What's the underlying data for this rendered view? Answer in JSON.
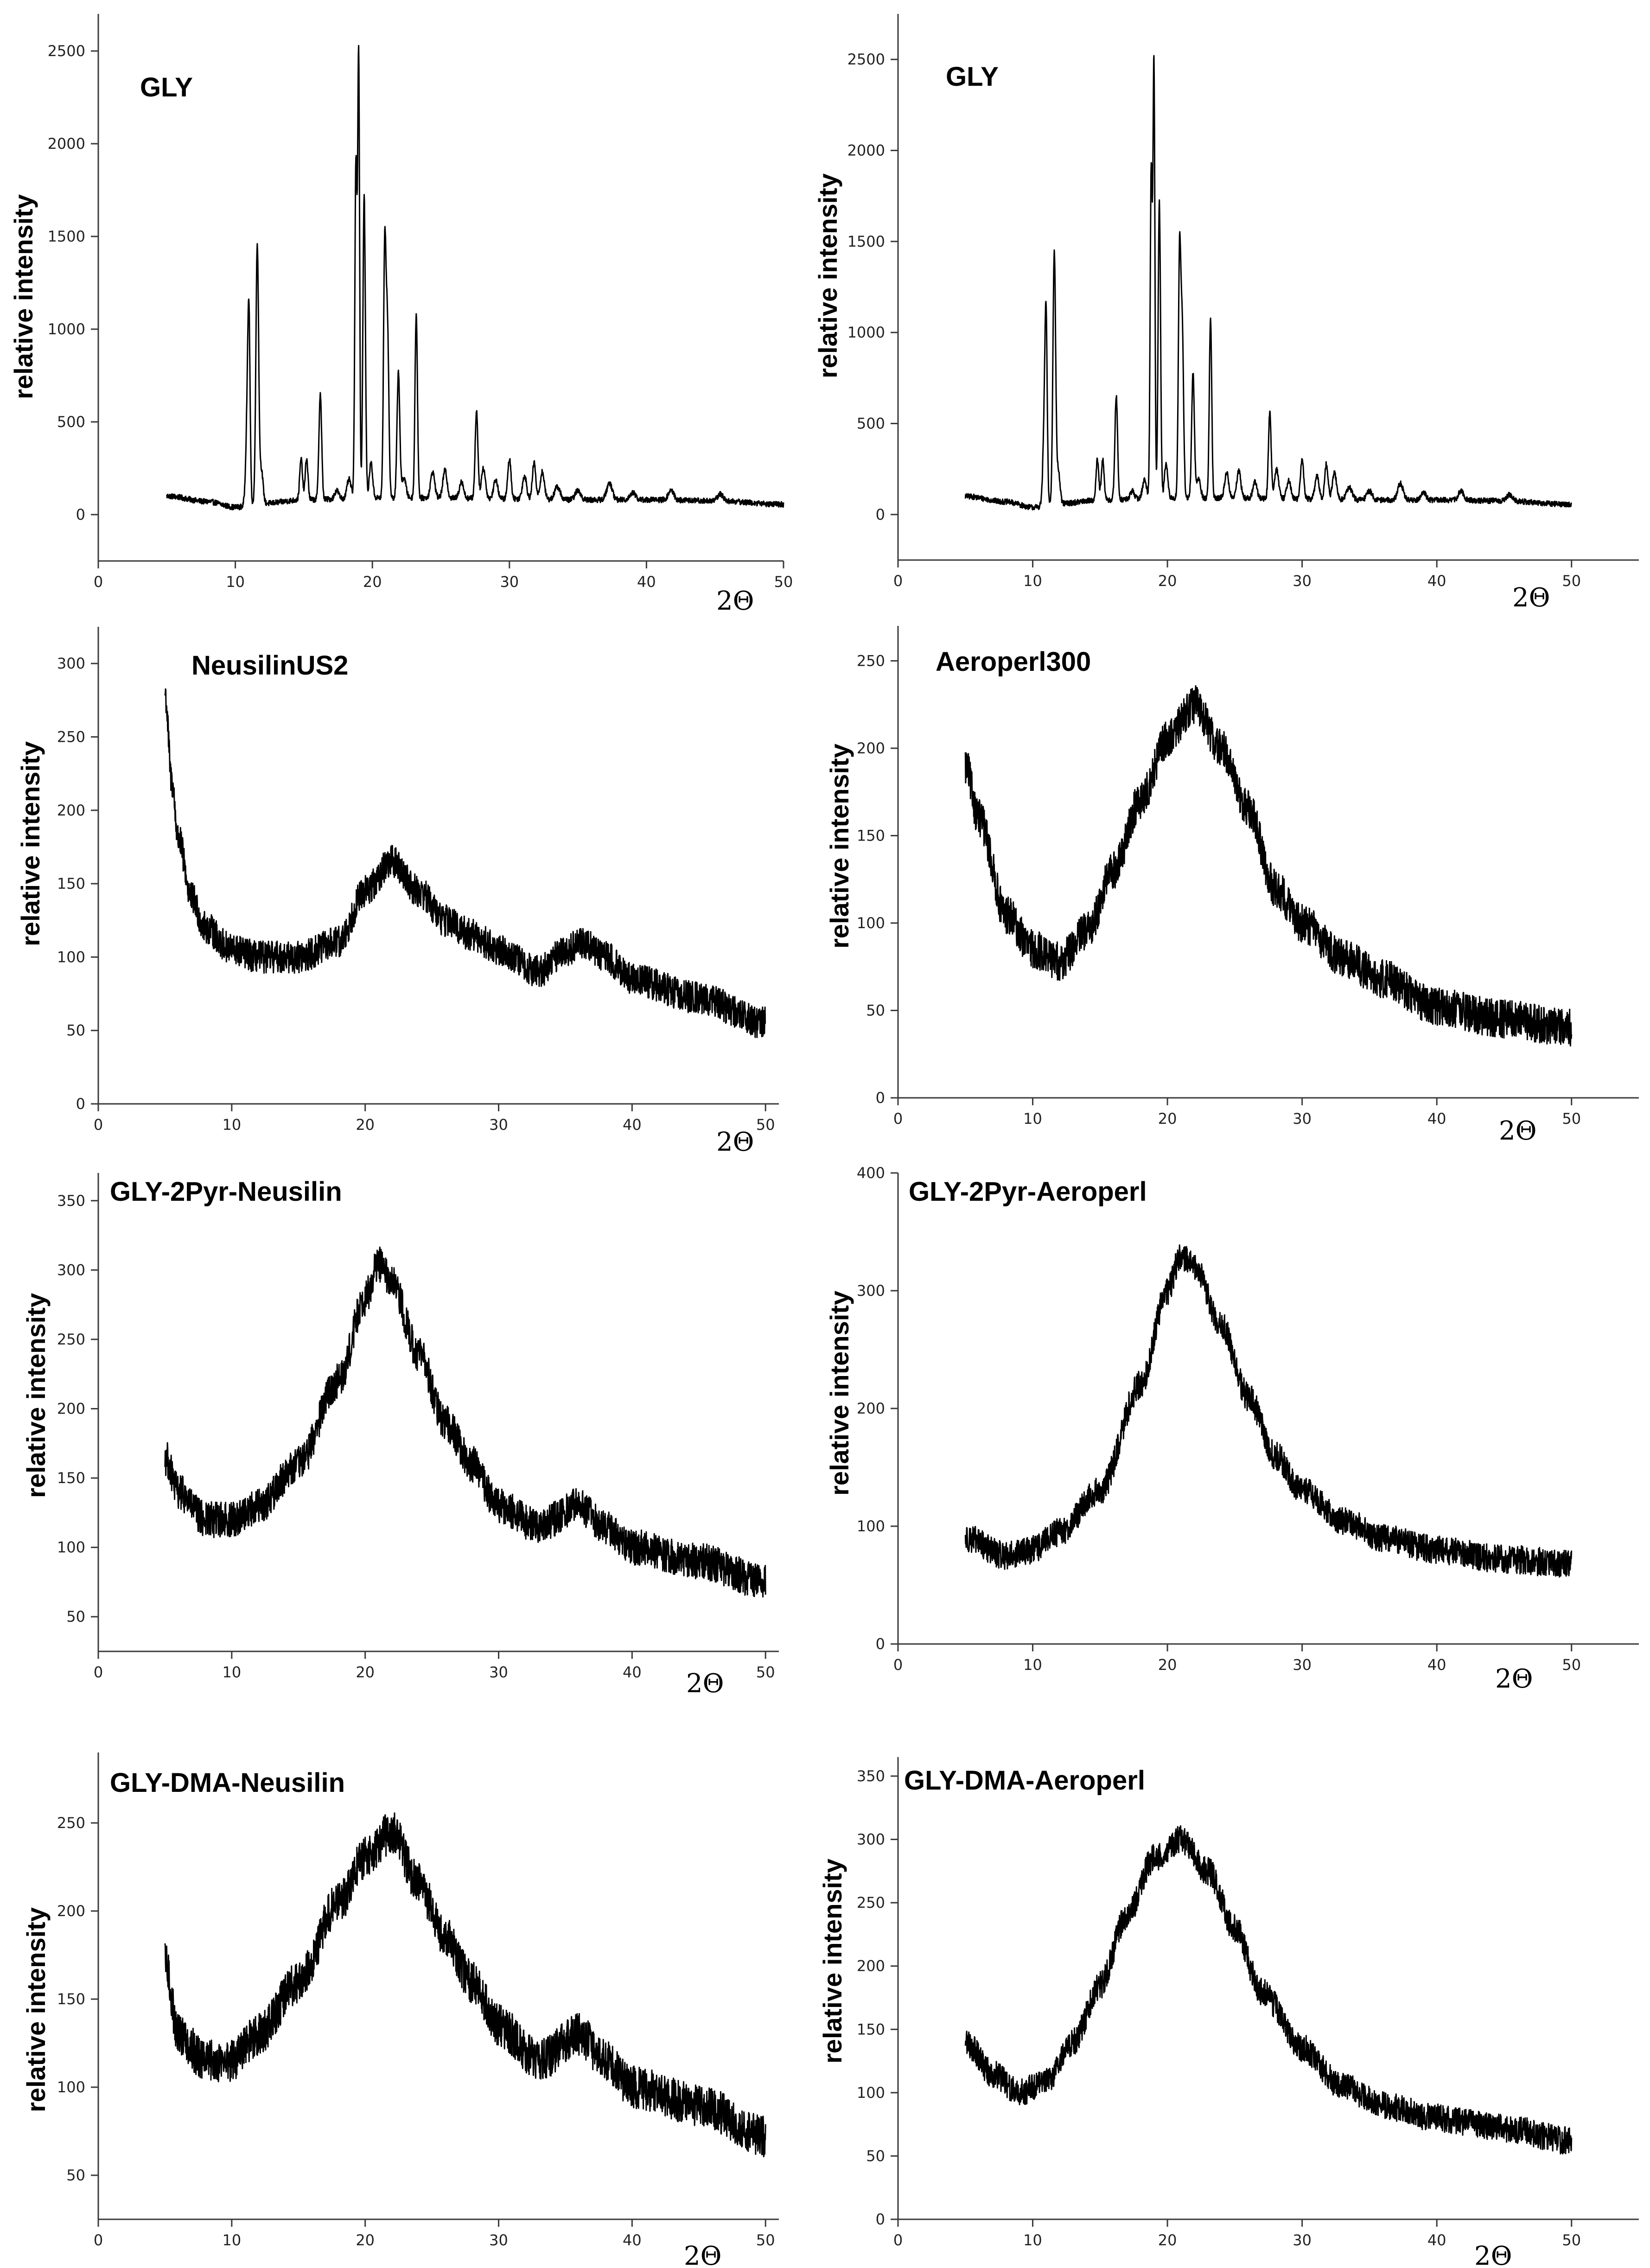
{
  "figure": {
    "background": "#ffffff",
    "line_color": "#000000"
  },
  "chart_data": [
    {
      "type": "line",
      "title": "GLY",
      "xlabel": "2Θ",
      "ylabel": "relative intensity",
      "xlim": [
        0,
        50
      ],
      "ylim": [
        -250,
        2700
      ],
      "xticks": [
        0,
        10,
        20,
        30,
        40,
        50
      ],
      "yticks": [
        0,
        500,
        1000,
        1500,
        2000,
        2500
      ],
      "x_range": [
        5,
        50
      ],
      "baseline": [
        [
          5,
          100
        ],
        [
          8,
          70
        ],
        [
          10,
          40
        ],
        [
          12,
          60
        ],
        [
          15,
          80
        ],
        [
          20,
          90
        ],
        [
          25,
          90
        ],
        [
          30,
          85
        ],
        [
          35,
          80
        ],
        [
          40,
          80
        ],
        [
          45,
          75
        ],
        [
          50,
          55
        ]
      ],
      "noise": 15,
      "peaks": [
        {
          "x": 10.9,
          "y": 600,
          "w": 0.12
        },
        {
          "x": 11.0,
          "y": 750,
          "w": 0.08
        },
        {
          "x": 11.6,
          "y": 1450,
          "w": 0.1
        },
        {
          "x": 11.9,
          "y": 240,
          "w": 0.12
        },
        {
          "x": 14.8,
          "y": 300,
          "w": 0.1
        },
        {
          "x": 15.2,
          "y": 300,
          "w": 0.1
        },
        {
          "x": 16.2,
          "y": 650,
          "w": 0.1
        },
        {
          "x": 17.4,
          "y": 130,
          "w": 0.15
        },
        {
          "x": 18.3,
          "y": 190,
          "w": 0.15
        },
        {
          "x": 18.8,
          "y": 1900,
          "w": 0.08
        },
        {
          "x": 19.0,
          "y": 2450,
          "w": 0.07
        },
        {
          "x": 19.4,
          "y": 1720,
          "w": 0.09
        },
        {
          "x": 19.9,
          "y": 280,
          "w": 0.12
        },
        {
          "x": 20.9,
          "y": 1400,
          "w": 0.09
        },
        {
          "x": 21.1,
          "y": 1000,
          "w": 0.1
        },
        {
          "x": 21.9,
          "y": 770,
          "w": 0.1
        },
        {
          "x": 22.3,
          "y": 200,
          "w": 0.15
        },
        {
          "x": 23.2,
          "y": 1080,
          "w": 0.09
        },
        {
          "x": 24.4,
          "y": 230,
          "w": 0.15
        },
        {
          "x": 25.3,
          "y": 240,
          "w": 0.15
        },
        {
          "x": 26.5,
          "y": 180,
          "w": 0.15
        },
        {
          "x": 27.6,
          "y": 560,
          "w": 0.1
        },
        {
          "x": 28.1,
          "y": 250,
          "w": 0.15
        },
        {
          "x": 29.0,
          "y": 190,
          "w": 0.15
        },
        {
          "x": 30.0,
          "y": 300,
          "w": 0.12
        },
        {
          "x": 31.1,
          "y": 210,
          "w": 0.15
        },
        {
          "x": 31.8,
          "y": 280,
          "w": 0.12
        },
        {
          "x": 32.4,
          "y": 230,
          "w": 0.15
        },
        {
          "x": 33.5,
          "y": 150,
          "w": 0.2
        },
        {
          "x": 35.0,
          "y": 130,
          "w": 0.2
        },
        {
          "x": 37.3,
          "y": 170,
          "w": 0.2
        },
        {
          "x": 39.0,
          "y": 120,
          "w": 0.2
        },
        {
          "x": 41.8,
          "y": 130,
          "w": 0.2
        },
        {
          "x": 45.4,
          "y": 110,
          "w": 0.2
        }
      ]
    },
    {
      "type": "line",
      "title": "GLY",
      "xlabel": "2Θ",
      "ylabel": "relative intensity",
      "xlim": [
        0,
        55
      ],
      "ylim": [
        -250,
        2750
      ],
      "xticks": [
        0,
        10,
        20,
        30,
        40,
        50
      ],
      "yticks": [
        0,
        500,
        1000,
        1500,
        2000,
        2500
      ],
      "x_range": [
        5,
        50
      ],
      "baseline": [
        [
          5,
          100
        ],
        [
          8,
          70
        ],
        [
          10,
          40
        ],
        [
          12,
          60
        ],
        [
          15,
          80
        ],
        [
          20,
          90
        ],
        [
          25,
          90
        ],
        [
          30,
          85
        ],
        [
          35,
          80
        ],
        [
          40,
          80
        ],
        [
          45,
          75
        ],
        [
          50,
          55
        ]
      ],
      "noise": 15,
      "peaks": [
        {
          "x": 10.9,
          "y": 600,
          "w": 0.12
        },
        {
          "x": 11.0,
          "y": 750,
          "w": 0.08
        },
        {
          "x": 11.6,
          "y": 1450,
          "w": 0.1
        },
        {
          "x": 11.9,
          "y": 240,
          "w": 0.12
        },
        {
          "x": 14.8,
          "y": 300,
          "w": 0.1
        },
        {
          "x": 15.2,
          "y": 300,
          "w": 0.1
        },
        {
          "x": 16.2,
          "y": 650,
          "w": 0.1
        },
        {
          "x": 17.4,
          "y": 130,
          "w": 0.15
        },
        {
          "x": 18.3,
          "y": 190,
          "w": 0.15
        },
        {
          "x": 18.8,
          "y": 1900,
          "w": 0.08
        },
        {
          "x": 19.0,
          "y": 2450,
          "w": 0.07
        },
        {
          "x": 19.4,
          "y": 1720,
          "w": 0.09
        },
        {
          "x": 19.9,
          "y": 280,
          "w": 0.12
        },
        {
          "x": 20.9,
          "y": 1400,
          "w": 0.09
        },
        {
          "x": 21.1,
          "y": 1000,
          "w": 0.1
        },
        {
          "x": 21.9,
          "y": 770,
          "w": 0.1
        },
        {
          "x": 22.3,
          "y": 200,
          "w": 0.15
        },
        {
          "x": 23.2,
          "y": 1080,
          "w": 0.09
        },
        {
          "x": 24.4,
          "y": 230,
          "w": 0.15
        },
        {
          "x": 25.3,
          "y": 240,
          "w": 0.15
        },
        {
          "x": 26.5,
          "y": 180,
          "w": 0.15
        },
        {
          "x": 27.6,
          "y": 560,
          "w": 0.1
        },
        {
          "x": 28.1,
          "y": 250,
          "w": 0.15
        },
        {
          "x": 29.0,
          "y": 190,
          "w": 0.15
        },
        {
          "x": 30.0,
          "y": 300,
          "w": 0.12
        },
        {
          "x": 31.1,
          "y": 210,
          "w": 0.15
        },
        {
          "x": 31.8,
          "y": 280,
          "w": 0.12
        },
        {
          "x": 32.4,
          "y": 230,
          "w": 0.15
        },
        {
          "x": 33.5,
          "y": 150,
          "w": 0.2
        },
        {
          "x": 35.0,
          "y": 130,
          "w": 0.2
        },
        {
          "x": 37.3,
          "y": 170,
          "w": 0.2
        },
        {
          "x": 39.0,
          "y": 120,
          "w": 0.2
        },
        {
          "x": 41.8,
          "y": 130,
          "w": 0.2
        },
        {
          "x": 45.4,
          "y": 110,
          "w": 0.2
        }
      ]
    },
    {
      "type": "line",
      "title": "NeusilinUS2",
      "xlabel": "2Θ",
      "ylabel": "relative intensity",
      "xlim": [
        0,
        51
      ],
      "ylim": [
        0,
        325
      ],
      "xticks": [
        0,
        10,
        20,
        30,
        40,
        50
      ],
      "yticks": [
        0,
        50,
        100,
        150,
        200,
        250,
        300
      ],
      "x_range": [
        5,
        50
      ],
      "baseline": [
        [
          5,
          280
        ],
        [
          5.5,
          220
        ],
        [
          6,
          180
        ],
        [
          7,
          140
        ],
        [
          8,
          120
        ],
        [
          10,
          105
        ],
        [
          12,
          100
        ],
        [
          15,
          100
        ],
        [
          18,
          110
        ],
        [
          20,
          145
        ],
        [
          22,
          165
        ],
        [
          24,
          145
        ],
        [
          26,
          125
        ],
        [
          28,
          115
        ],
        [
          30,
          105
        ],
        [
          33,
          90
        ],
        [
          35,
          105
        ],
        [
          36.5,
          110
        ],
        [
          38,
          100
        ],
        [
          40,
          85
        ],
        [
          45,
          72
        ],
        [
          50,
          55
        ]
      ],
      "noise": 11,
      "peaks": []
    },
    {
      "type": "line",
      "title": "Aeroperl300",
      "xlabel": "2Θ",
      "ylabel": "relative intensity",
      "xlim": [
        0,
        55
      ],
      "ylim": [
        0,
        270
      ],
      "xticks": [
        0,
        10,
        20,
        30,
        40,
        50
      ],
      "yticks": [
        0,
        50,
        100,
        150,
        200,
        250
      ],
      "x_range": [
        5,
        50
      ],
      "baseline": [
        [
          5,
          190
        ],
        [
          6,
          160
        ],
        [
          8,
          105
        ],
        [
          10,
          85
        ],
        [
          12,
          78
        ],
        [
          14,
          95
        ],
        [
          16,
          130
        ],
        [
          18,
          170
        ],
        [
          20,
          205
        ],
        [
          22,
          225
        ],
        [
          24,
          200
        ],
        [
          26,
          165
        ],
        [
          28,
          120
        ],
        [
          30,
          100
        ],
        [
          33,
          80
        ],
        [
          36,
          68
        ],
        [
          40,
          52
        ],
        [
          45,
          45
        ],
        [
          50,
          40
        ]
      ],
      "noise": 11,
      "peaks": []
    },
    {
      "type": "line",
      "title": "GLY-2Pyr-Neusilin",
      "xlabel": "2Θ",
      "ylabel": "relative intensity",
      "xlim": [
        0,
        51
      ],
      "ylim": [
        25,
        370
      ],
      "xticks": [
        0,
        10,
        20,
        30,
        40,
        50
      ],
      "yticks": [
        50,
        100,
        150,
        200,
        250,
        300,
        350
      ],
      "x_range": [
        5,
        50
      ],
      "baseline": [
        [
          5,
          165
        ],
        [
          6,
          140
        ],
        [
          8,
          120
        ],
        [
          10,
          120
        ],
        [
          12,
          130
        ],
        [
          15,
          160
        ],
        [
          18,
          220
        ],
        [
          20,
          280
        ],
        [
          21,
          305
        ],
        [
          22,
          290
        ],
        [
          24,
          240
        ],
        [
          26,
          190
        ],
        [
          28,
          160
        ],
        [
          30,
          130
        ],
        [
          33,
          115
        ],
        [
          36,
          130
        ],
        [
          38,
          115
        ],
        [
          40,
          100
        ],
        [
          45,
          90
        ],
        [
          50,
          75
        ]
      ],
      "noise": 13,
      "peaks": []
    },
    {
      "type": "line",
      "title": "GLY-2Pyr-Aeroperl",
      "xlabel": "2Θ",
      "ylabel": "relative intensity",
      "xlim": [
        0,
        55
      ],
      "ylim": [
        0,
        400
      ],
      "xticks": [
        0,
        10,
        20,
        30,
        40,
        50
      ],
      "yticks": [
        0,
        100,
        200,
        300,
        400
      ],
      "x_range": [
        5,
        50
      ],
      "baseline": [
        [
          5,
          90
        ],
        [
          8,
          75
        ],
        [
          10,
          80
        ],
        [
          12,
          95
        ],
        [
          15,
          130
        ],
        [
          18,
          220
        ],
        [
          20,
          300
        ],
        [
          21,
          330
        ],
        [
          22,
          320
        ],
        [
          24,
          270
        ],
        [
          26,
          210
        ],
        [
          28,
          160
        ],
        [
          30,
          130
        ],
        [
          33,
          105
        ],
        [
          36,
          90
        ],
        [
          40,
          80
        ],
        [
          45,
          72
        ],
        [
          50,
          68
        ]
      ],
      "noise": 12,
      "peaks": []
    },
    {
      "type": "line",
      "title": "GLY-DMA-Neusilin",
      "xlabel": "2Θ",
      "ylabel": "relative intensity",
      "xlim": [
        0,
        51
      ],
      "ylim": [
        25,
        290
      ],
      "xticks": [
        0,
        10,
        20,
        30,
        40,
        50
      ],
      "yticks": [
        50,
        100,
        150,
        200,
        250
      ],
      "x_range": [
        5,
        50
      ],
      "baseline": [
        [
          5,
          170
        ],
        [
          6,
          130
        ],
        [
          8,
          115
        ],
        [
          10,
          115
        ],
        [
          12,
          130
        ],
        [
          15,
          160
        ],
        [
          18,
          205
        ],
        [
          20,
          230
        ],
        [
          22,
          245
        ],
        [
          24,
          215
        ],
        [
          26,
          185
        ],
        [
          28,
          160
        ],
        [
          30,
          135
        ],
        [
          33,
          115
        ],
        [
          36,
          130
        ],
        [
          38,
          115
        ],
        [
          40,
          100
        ],
        [
          45,
          90
        ],
        [
          50,
          72
        ]
      ],
      "noise": 12,
      "peaks": []
    },
    {
      "type": "line",
      "title": "GLY-DMA-Aeroperl",
      "xlabel": "2Θ",
      "ylabel": "relative intensity",
      "xlim": [
        0,
        55
      ],
      "ylim": [
        0,
        365
      ],
      "xticks": [
        0,
        10,
        20,
        30,
        40,
        50
      ],
      "yticks": [
        0,
        50,
        100,
        150,
        200,
        250,
        300,
        350
      ],
      "x_range": [
        5,
        50
      ],
      "baseline": [
        [
          5,
          140
        ],
        [
          7,
          115
        ],
        [
          9,
          100
        ],
        [
          11,
          110
        ],
        [
          13,
          140
        ],
        [
          15,
          185
        ],
        [
          17,
          240
        ],
        [
          19,
          285
        ],
        [
          21,
          300
        ],
        [
          23,
          275
        ],
        [
          25,
          230
        ],
        [
          27,
          180
        ],
        [
          30,
          135
        ],
        [
          33,
          105
        ],
        [
          36,
          90
        ],
        [
          40,
          80
        ],
        [
          45,
          72
        ],
        [
          50,
          62
        ]
      ],
      "noise": 11,
      "peaks": []
    }
  ]
}
